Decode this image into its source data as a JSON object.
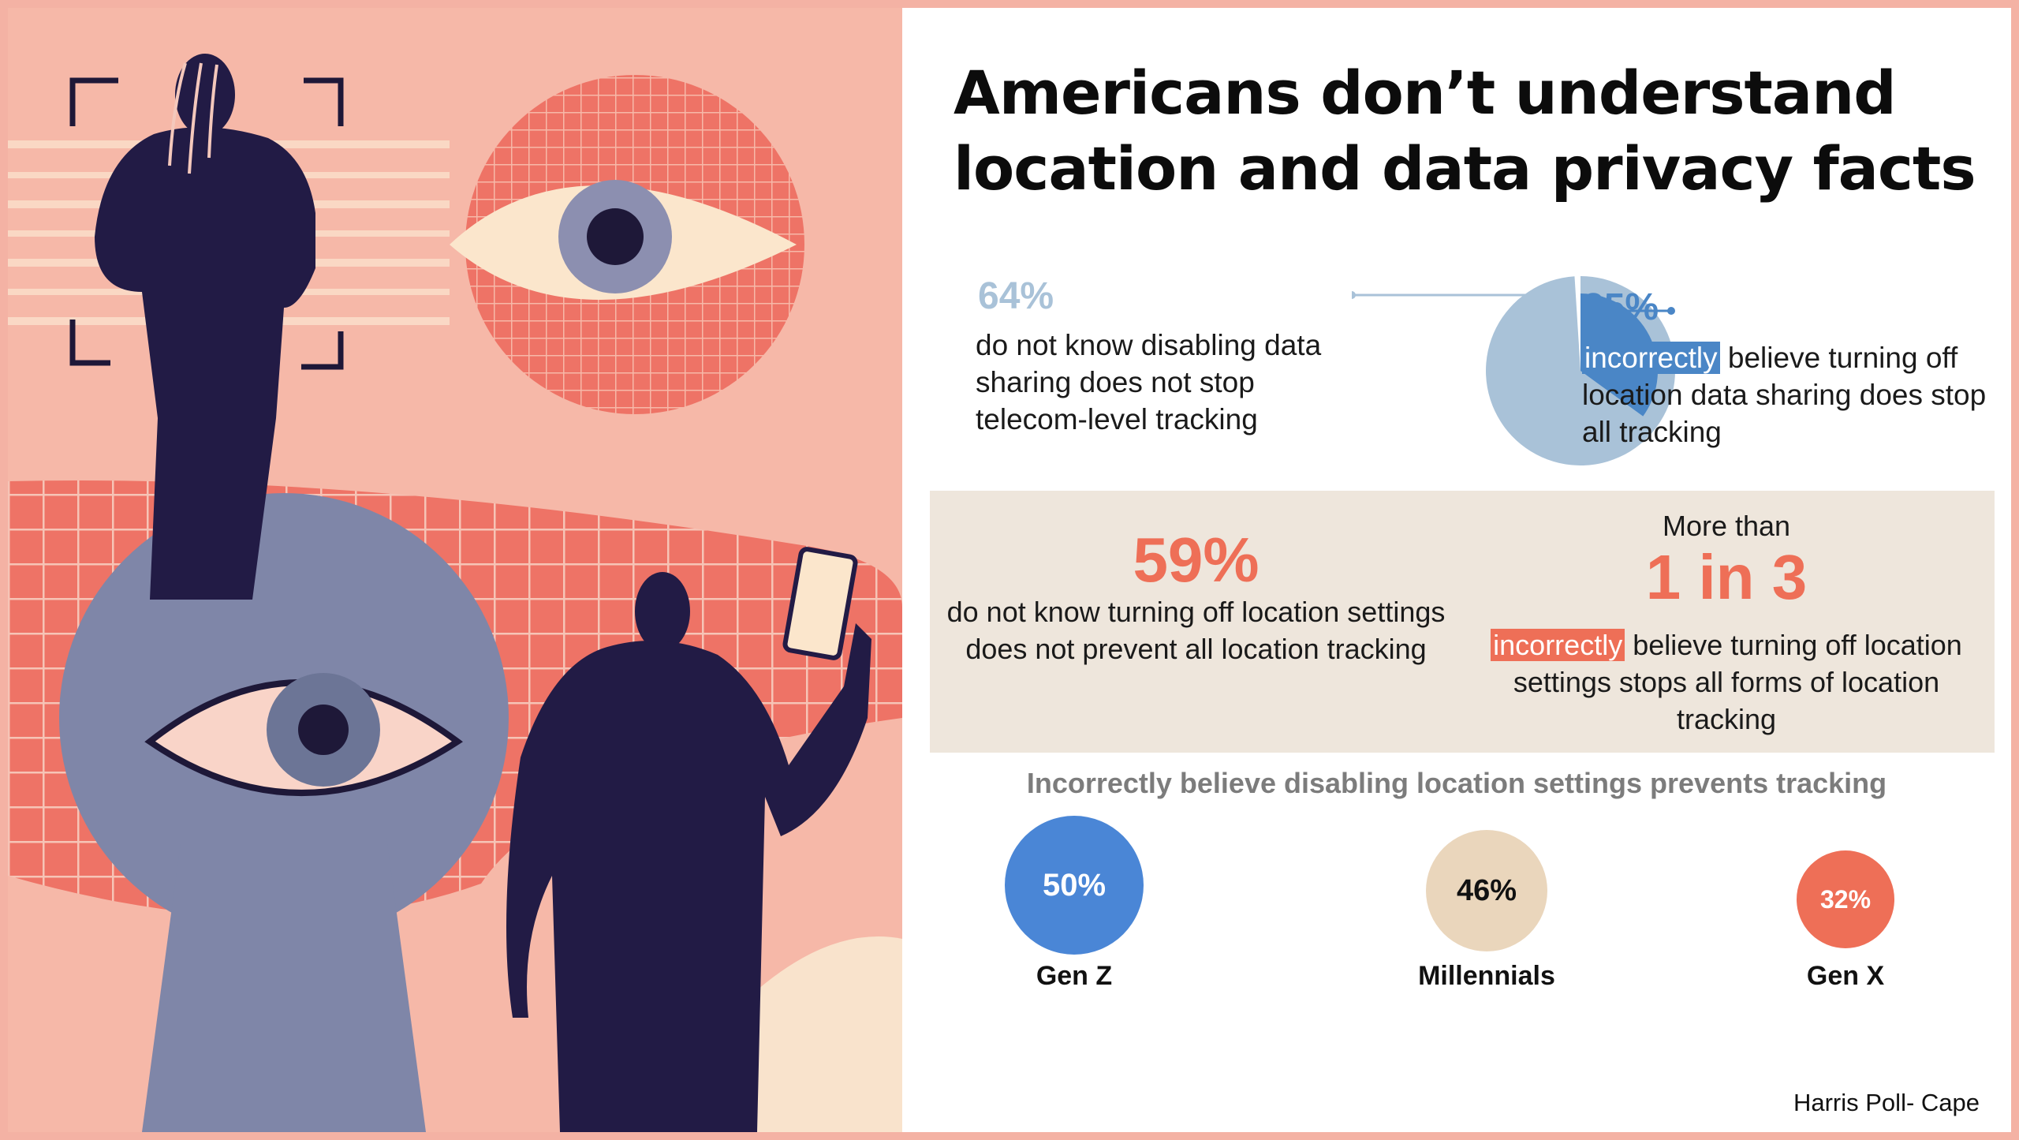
{
  "title": "Americans don’t understand location and data privacy facts",
  "stat64": {
    "value": "64%",
    "text": "do not know disabling data sharing does not stop telecom-level tracking"
  },
  "stat35": {
    "value": "35%",
    "highlight": "incorrectly",
    "text": " believe turning off location data sharing does stop all tracking"
  },
  "stat59": {
    "value": "59%",
    "text": "do not know turning off location settings does not prevent all location tracking"
  },
  "stat1in3": {
    "pre": "More than",
    "value": "1 in 3",
    "highlight": "incorrectly",
    "text": " believe turning off location settings stops all forms of location tracking"
  },
  "generations": {
    "heading": "Incorrectly believe disabling location settings prevents tracking"
  },
  "source": "Harris Poll- Cape",
  "colors": {
    "blue": "#4a86c6",
    "light_blue": "#a9c2d8",
    "coral": "#ee6f57",
    "beige": "#ead6bc"
  },
  "chart_data": [
    {
      "type": "pie",
      "series": [
        {
          "name": "incorrectly believe turning off location data sharing does stop all tracking",
          "value": 35
        },
        {
          "name": "do not know disabling data sharing does not stop telecom-level tracking",
          "value": 64
        }
      ]
    },
    {
      "type": "bar",
      "title": "Incorrectly believe disabling location settings prevents tracking",
      "categories": [
        "Gen Z",
        "Millennials",
        "Gen X"
      ],
      "values": [
        50,
        46,
        32
      ],
      "labels": [
        "50%",
        "46%",
        "32%"
      ],
      "colors": [
        "#4a86d6",
        "#ead6bc",
        "#ee6f57"
      ]
    }
  ]
}
